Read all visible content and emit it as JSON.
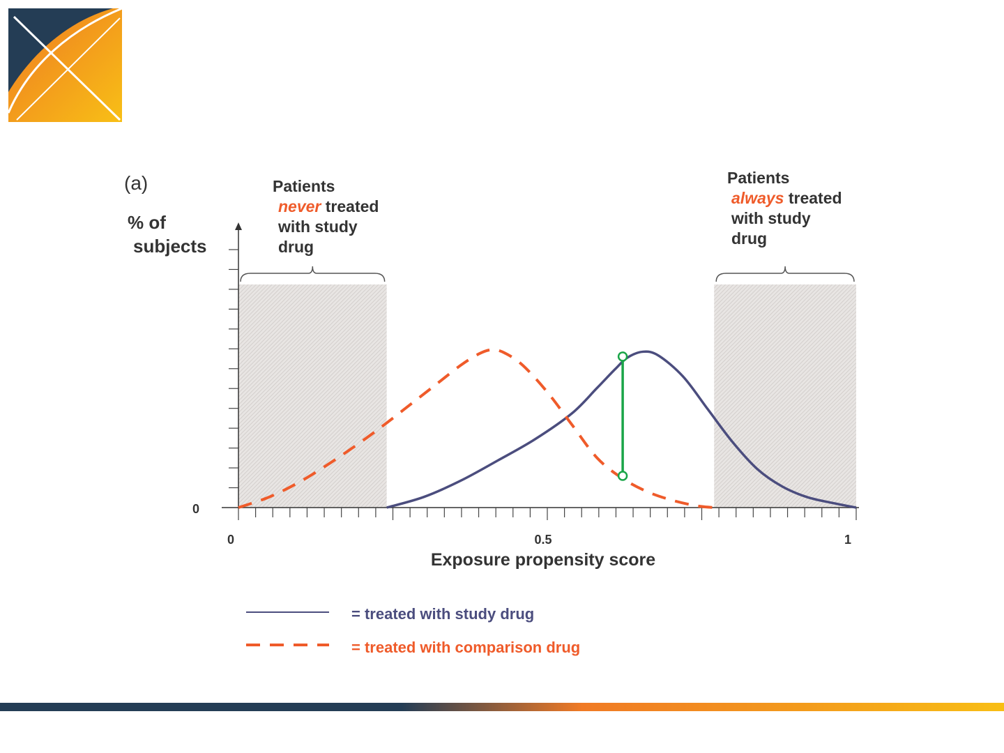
{
  "colors": {
    "navy": "#243d55",
    "orange": "#f07a25",
    "gold": "#f8be15",
    "study_line": "#4b4d7e",
    "comparison_line": "#ef5b2a",
    "connector": "#1aa548",
    "shade": "#d8d4d2"
  },
  "logo": {
    "icon": "x-logo-icon"
  },
  "chart_data": {
    "type": "line",
    "panel_label": "(a)",
    "ylabel": [
      "% of",
      "subjects"
    ],
    "xlabel": "Exposure propensity score",
    "y_zero_label": "0",
    "x_tick_labels": [
      "0",
      "0.5",
      "1"
    ],
    "xlim": [
      0,
      1
    ],
    "ylim": [
      0,
      1
    ],
    "annotations": {
      "never": {
        "lines": [
          [
            {
              "text": "Patients",
              "style": "normal"
            }
          ],
          [
            {
              "text": "never",
              "style": "emph"
            },
            {
              "text": " treated",
              "style": "normal"
            }
          ],
          [
            {
              "text": "with study",
              "style": "normal"
            }
          ],
          [
            {
              "text": "drug",
              "style": "normal"
            }
          ]
        ],
        "region": [
          0,
          0.24
        ]
      },
      "always": {
        "lines": [
          [
            {
              "text": "Patients",
              "style": "normal"
            }
          ],
          [
            {
              "text": "always",
              "style": "emph"
            },
            {
              "text": " treated",
              "style": "normal"
            }
          ],
          [
            {
              "text": "with study",
              "style": "normal"
            }
          ],
          [
            {
              "text": "drug",
              "style": "normal"
            }
          ]
        ],
        "region": [
          0.77,
          1.0
        ]
      }
    },
    "series": [
      {
        "key": "study",
        "style": "solid",
        "x": [
          0.24,
          0.3,
          0.36,
          0.42,
          0.48,
          0.54,
          0.58,
          0.61,
          0.63,
          0.655,
          0.68,
          0.72,
          0.76,
          0.8,
          0.84,
          0.88,
          0.92,
          0.96,
          1.0
        ],
        "y": [
          0.0,
          0.055,
          0.14,
          0.245,
          0.355,
          0.49,
          0.62,
          0.72,
          0.78,
          0.81,
          0.79,
          0.68,
          0.51,
          0.34,
          0.2,
          0.11,
          0.055,
          0.025,
          0.0
        ]
      },
      {
        "key": "comparison",
        "style": "dashed",
        "x": [
          0.0,
          0.05,
          0.1,
          0.15,
          0.2,
          0.24,
          0.28,
          0.32,
          0.36,
          0.39,
          0.41,
          0.43,
          0.46,
          0.5,
          0.54,
          0.58,
          0.62,
          0.66,
          0.7,
          0.74,
          0.77
        ],
        "y": [
          0.0,
          0.055,
          0.135,
          0.235,
          0.345,
          0.44,
          0.54,
          0.64,
          0.74,
          0.8,
          0.82,
          0.805,
          0.74,
          0.6,
          0.43,
          0.26,
          0.155,
          0.085,
          0.04,
          0.01,
          0.0
        ]
      }
    ],
    "connector": {
      "x": 0.622,
      "y_top": 0.785,
      "y_bottom": 0.165
    },
    "legend": [
      {
        "style": "solid",
        "label": "= treated with study drug"
      },
      {
        "style": "dashed",
        "label": "= treated with comparison drug"
      }
    ]
  }
}
